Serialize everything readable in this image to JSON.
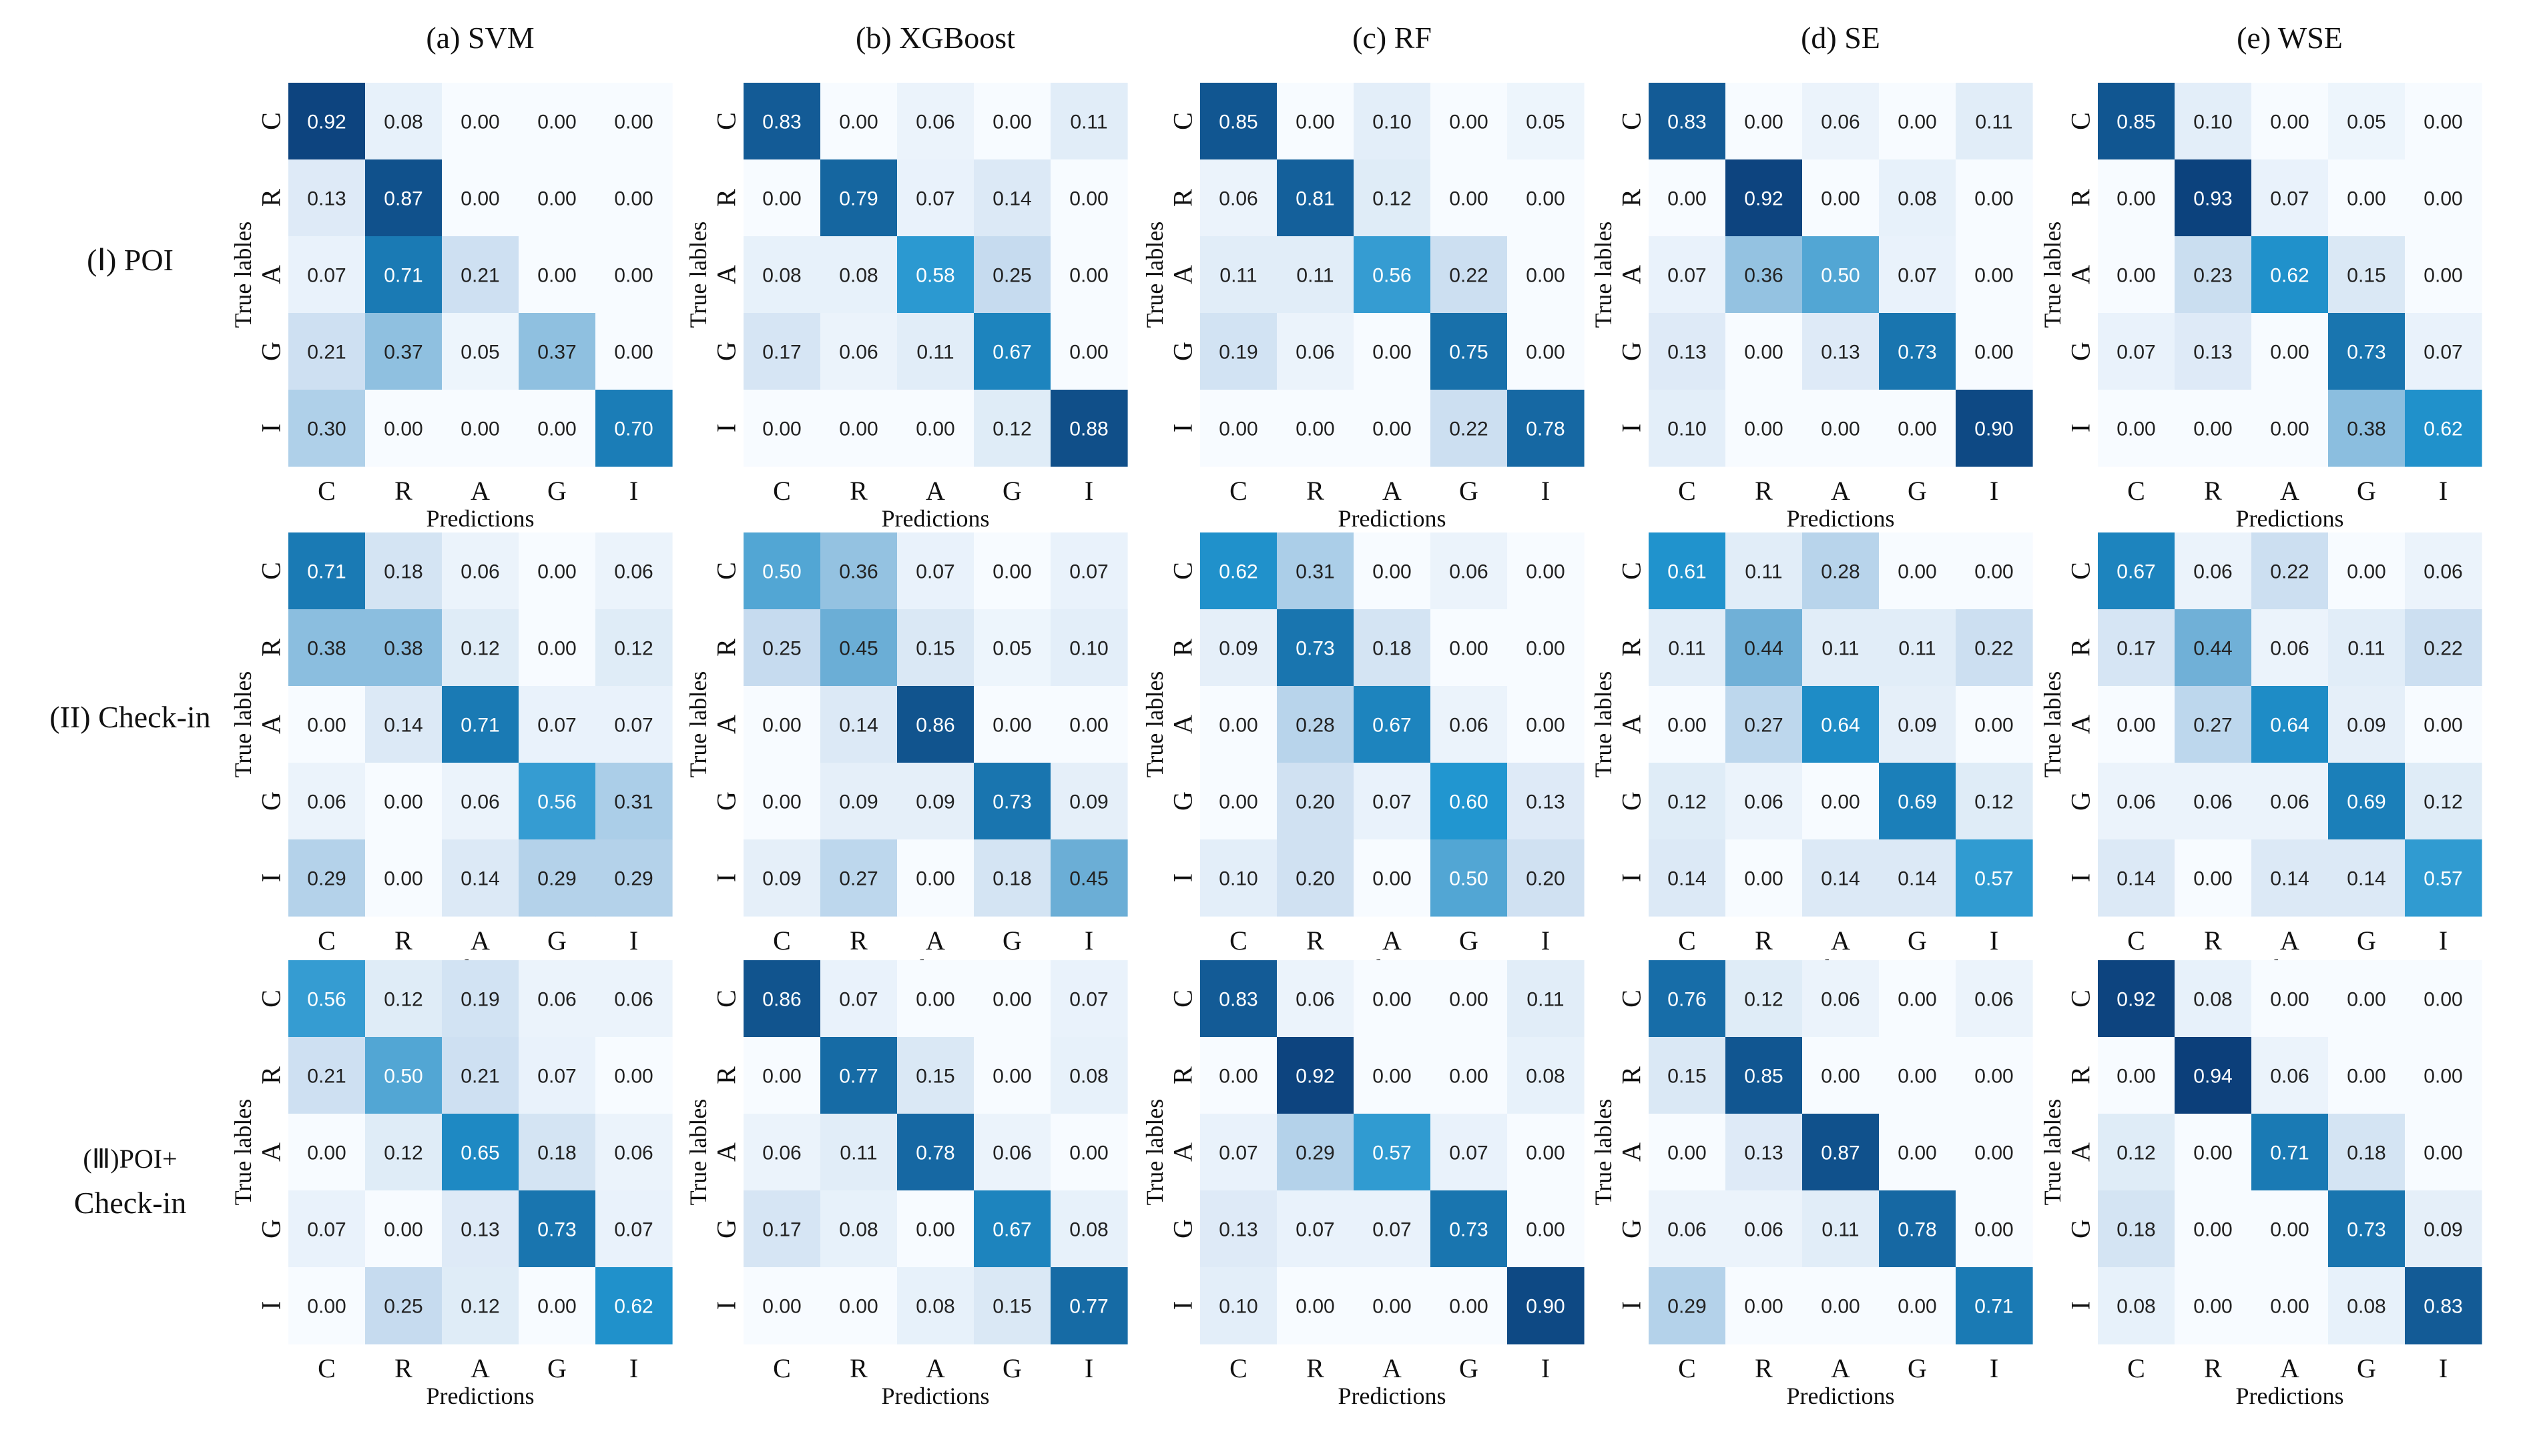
{
  "categories": [
    "C",
    "R",
    "A",
    "G",
    "I"
  ],
  "ylabel": "True lables",
  "xlabel": "Predictions",
  "columns": [
    "(a) SVM",
    "(b) XGBoost",
    "(c) RF",
    "(d) SE",
    "(e) WSE"
  ],
  "rows": [
    "(Ⅰ) POI",
    "(II) Check-in",
    "(Ⅲ)POI+ Check-in"
  ],
  "row_label_lines": [
    [
      "(Ⅰ) POI"
    ],
    [
      "(II) Check-in"
    ],
    [
      "(Ⅲ)POI+",
      "Check-in"
    ]
  ],
  "colors": {
    "min": "#f7fbff",
    "mid1": "#c6dbef",
    "mid2": "#6baed6",
    "mid3": "#2196d0",
    "max": "#08306b",
    "text_dark": "#222222",
    "text_light": "#ffffff"
  },
  "chart_data": [
    {
      "type": "heatmap",
      "row": "(Ⅰ) POI",
      "model": "(a) SVM",
      "xlabel": "Predictions",
      "ylabel": "True lables",
      "categories": [
        "C",
        "R",
        "A",
        "G",
        "I"
      ],
      "values": [
        [
          0.92,
          0.08,
          0.0,
          0.0,
          0.0
        ],
        [
          0.13,
          0.87,
          0.0,
          0.0,
          0.0
        ],
        [
          0.07,
          0.71,
          0.21,
          0.0,
          0.0
        ],
        [
          0.21,
          0.37,
          0.05,
          0.37,
          0.0
        ],
        [
          0.3,
          0.0,
          0.0,
          0.0,
          0.7
        ]
      ]
    },
    {
      "type": "heatmap",
      "row": "(Ⅰ) POI",
      "model": "(b) XGBoost",
      "xlabel": "Predictions",
      "ylabel": "True lables",
      "categories": [
        "C",
        "R",
        "A",
        "G",
        "I"
      ],
      "values": [
        [
          0.83,
          0.0,
          0.06,
          0.0,
          0.11
        ],
        [
          0.0,
          0.79,
          0.07,
          0.14,
          0.0
        ],
        [
          0.08,
          0.08,
          0.58,
          0.25,
          0.0
        ],
        [
          0.17,
          0.06,
          0.11,
          0.67,
          0.0
        ],
        [
          0.0,
          0.0,
          0.0,
          0.12,
          0.88
        ]
      ]
    },
    {
      "type": "heatmap",
      "row": "(Ⅰ) POI",
      "model": "(c) RF",
      "xlabel": "Predictions",
      "ylabel": "True lables",
      "categories": [
        "C",
        "R",
        "A",
        "G",
        "I"
      ],
      "values": [
        [
          0.85,
          0.0,
          0.1,
          0.0,
          0.05
        ],
        [
          0.06,
          0.81,
          0.12,
          0.0,
          0.0
        ],
        [
          0.11,
          0.11,
          0.56,
          0.22,
          0.0
        ],
        [
          0.19,
          0.06,
          0.0,
          0.75,
          0.0
        ],
        [
          0.0,
          0.0,
          0.0,
          0.22,
          0.78
        ]
      ]
    },
    {
      "type": "heatmap",
      "row": "(Ⅰ) POI",
      "model": "(d) SE",
      "xlabel": "Predictions",
      "ylabel": "True lables",
      "categories": [
        "C",
        "R",
        "A",
        "G",
        "I"
      ],
      "values": [
        [
          0.83,
          0.0,
          0.06,
          0.0,
          0.11
        ],
        [
          0.0,
          0.92,
          0.0,
          0.08,
          0.0
        ],
        [
          0.07,
          0.36,
          0.5,
          0.07,
          0.0
        ],
        [
          0.13,
          0.0,
          0.13,
          0.73,
          0.0
        ],
        [
          0.1,
          0.0,
          0.0,
          0.0,
          0.9
        ]
      ]
    },
    {
      "type": "heatmap",
      "row": "(Ⅰ) POI",
      "model": "(e) WSE",
      "xlabel": "Predictions",
      "ylabel": "True lables",
      "categories": [
        "C",
        "R",
        "A",
        "G",
        "I"
      ],
      "values": [
        [
          0.85,
          0.1,
          0.0,
          0.05,
          0.0
        ],
        [
          0.0,
          0.93,
          0.07,
          0.0,
          0.0
        ],
        [
          0.0,
          0.23,
          0.62,
          0.15,
          0.0
        ],
        [
          0.07,
          0.13,
          0.0,
          0.73,
          0.07
        ],
        [
          0.0,
          0.0,
          0.0,
          0.38,
          0.62
        ]
      ]
    },
    {
      "type": "heatmap",
      "row": "(II) Check-in",
      "model": "(a) SVM",
      "xlabel": "Predictions",
      "ylabel": "True lables",
      "categories": [
        "C",
        "R",
        "A",
        "G",
        "I"
      ],
      "values": [
        [
          0.71,
          0.18,
          0.06,
          0.0,
          0.06
        ],
        [
          0.38,
          0.38,
          0.12,
          0.0,
          0.12
        ],
        [
          0.0,
          0.14,
          0.71,
          0.07,
          0.07
        ],
        [
          0.06,
          0.0,
          0.06,
          0.56,
          0.31
        ],
        [
          0.29,
          0.0,
          0.14,
          0.29,
          0.29
        ]
      ]
    },
    {
      "type": "heatmap",
      "row": "(II) Check-in",
      "model": "(b) XGBoost",
      "xlabel": "Predictions",
      "ylabel": "True lables",
      "categories": [
        "C",
        "R",
        "A",
        "G",
        "I"
      ],
      "values": [
        [
          0.5,
          0.36,
          0.07,
          0.0,
          0.07
        ],
        [
          0.25,
          0.45,
          0.15,
          0.05,
          0.1
        ],
        [
          0.0,
          0.14,
          0.86,
          0.0,
          0.0
        ],
        [
          0.0,
          0.09,
          0.09,
          0.73,
          0.09
        ],
        [
          0.09,
          0.27,
          0.0,
          0.18,
          0.45
        ]
      ]
    },
    {
      "type": "heatmap",
      "row": "(II) Check-in",
      "model": "(c) RF",
      "xlabel": "Predictions",
      "ylabel": "True lables",
      "categories": [
        "C",
        "R",
        "A",
        "G",
        "I"
      ],
      "values": [
        [
          0.62,
          0.31,
          0.0,
          0.06,
          0.0
        ],
        [
          0.09,
          0.73,
          0.18,
          0.0,
          0.0
        ],
        [
          0.0,
          0.28,
          0.67,
          0.06,
          0.0
        ],
        [
          0.0,
          0.2,
          0.07,
          0.6,
          0.13
        ],
        [
          0.1,
          0.2,
          0.0,
          0.5,
          0.2
        ]
      ]
    },
    {
      "type": "heatmap",
      "row": "(II) Check-in",
      "model": "(d) SE",
      "xlabel": "Predictions",
      "ylabel": "True lables",
      "categories": [
        "C",
        "R",
        "A",
        "G",
        "I"
      ],
      "values": [
        [
          0.61,
          0.11,
          0.28,
          0.0,
          0.0
        ],
        [
          0.11,
          0.44,
          0.11,
          0.11,
          0.22
        ],
        [
          0.0,
          0.27,
          0.64,
          0.09,
          0.0
        ],
        [
          0.12,
          0.06,
          0.0,
          0.69,
          0.12
        ],
        [
          0.14,
          0.0,
          0.14,
          0.14,
          0.57
        ]
      ]
    },
    {
      "type": "heatmap",
      "row": "(II) Check-in",
      "model": "(e) WSE",
      "xlabel": "Predictions",
      "ylabel": "True lables",
      "categories": [
        "C",
        "R",
        "A",
        "G",
        "I"
      ],
      "values": [
        [
          0.67,
          0.06,
          0.22,
          0.0,
          0.06
        ],
        [
          0.17,
          0.44,
          0.06,
          0.11,
          0.22
        ],
        [
          0.0,
          0.27,
          0.64,
          0.09,
          0.0
        ],
        [
          0.06,
          0.06,
          0.06,
          0.69,
          0.12
        ],
        [
          0.14,
          0.0,
          0.14,
          0.14,
          0.57
        ]
      ]
    },
    {
      "type": "heatmap",
      "row": "(Ⅲ)POI+ Check-in",
      "model": "(a) SVM",
      "xlabel": "Predictions",
      "ylabel": "True lables",
      "categories": [
        "C",
        "R",
        "A",
        "G",
        "I"
      ],
      "values": [
        [
          0.56,
          0.12,
          0.19,
          0.06,
          0.06
        ],
        [
          0.21,
          0.5,
          0.21,
          0.07,
          0.0
        ],
        [
          0.0,
          0.12,
          0.65,
          0.18,
          0.06
        ],
        [
          0.07,
          0.0,
          0.13,
          0.73,
          0.07
        ],
        [
          0.0,
          0.25,
          0.12,
          0.0,
          0.62
        ]
      ]
    },
    {
      "type": "heatmap",
      "row": "(Ⅲ)POI+ Check-in",
      "model": "(b) XGBoost",
      "xlabel": "Predictions",
      "ylabel": "True lables",
      "categories": [
        "C",
        "R",
        "A",
        "G",
        "I"
      ],
      "values": [
        [
          0.86,
          0.07,
          0.0,
          0.0,
          0.07
        ],
        [
          0.0,
          0.77,
          0.15,
          0.0,
          0.08
        ],
        [
          0.06,
          0.11,
          0.78,
          0.06,
          0.0
        ],
        [
          0.17,
          0.08,
          0.0,
          0.67,
          0.08
        ],
        [
          0.0,
          0.0,
          0.08,
          0.15,
          0.77
        ]
      ]
    },
    {
      "type": "heatmap",
      "row": "(Ⅲ)POI+ Check-in",
      "model": "(c) RF",
      "xlabel": "Predictions",
      "ylabel": "True lables",
      "categories": [
        "C",
        "R",
        "A",
        "G",
        "I"
      ],
      "values": [
        [
          0.83,
          0.06,
          0.0,
          0.0,
          0.11
        ],
        [
          0.0,
          0.92,
          0.0,
          0.0,
          0.08
        ],
        [
          0.07,
          0.29,
          0.57,
          0.07,
          0.0
        ],
        [
          0.13,
          0.07,
          0.07,
          0.73,
          0.0
        ],
        [
          0.1,
          0.0,
          0.0,
          0.0,
          0.9
        ]
      ]
    },
    {
      "type": "heatmap",
      "row": "(Ⅲ)POI+ Check-in",
      "model": "(d) SE",
      "xlabel": "Predictions",
      "ylabel": "True lables",
      "categories": [
        "C",
        "R",
        "A",
        "G",
        "I"
      ],
      "values": [
        [
          0.76,
          0.12,
          0.06,
          0.0,
          0.06
        ],
        [
          0.15,
          0.85,
          0.0,
          0.0,
          0.0
        ],
        [
          0.0,
          0.13,
          0.87,
          0.0,
          0.0
        ],
        [
          0.06,
          0.06,
          0.11,
          0.78,
          0.0
        ],
        [
          0.29,
          0.0,
          0.0,
          0.0,
          0.71
        ]
      ]
    },
    {
      "type": "heatmap",
      "row": "(Ⅲ)POI+ Check-in",
      "model": "(e) WSE",
      "xlabel": "Predictions",
      "ylabel": "True lables",
      "categories": [
        "C",
        "R",
        "A",
        "G",
        "I"
      ],
      "values": [
        [
          0.92,
          0.08,
          0.0,
          0.0,
          0.0
        ],
        [
          0.0,
          0.94,
          0.06,
          0.0,
          0.0
        ],
        [
          0.12,
          0.0,
          0.71,
          0.18,
          0.0
        ],
        [
          0.18,
          0.0,
          0.0,
          0.73,
          0.09
        ],
        [
          0.08,
          0.0,
          0.0,
          0.08,
          0.83
        ]
      ]
    }
  ]
}
